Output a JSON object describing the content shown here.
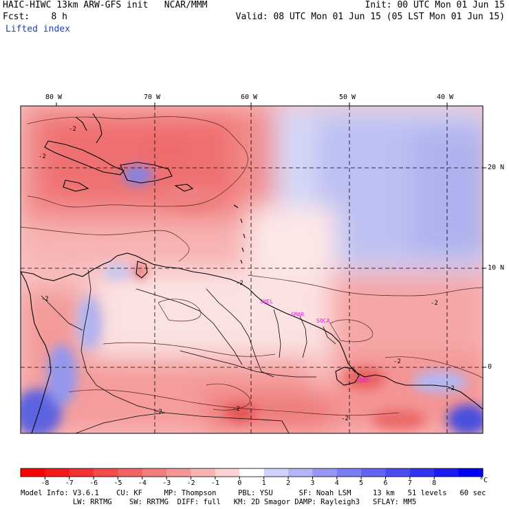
{
  "header": {
    "model_line": "HAIC-HIWC 13km ARW-GFS init   NCAR/MMM",
    "init_line": "Init: 00 UTC Mon 01 Jun 15",
    "fcst_line": "Fcst:    8 h",
    "valid_line": "Valid: 08 UTC Mon 01 Jun 15 (05 LST Mon 01 Jun 15)",
    "field_name": "Lifted index"
  },
  "map": {
    "longitude_labels": [
      "80 W",
      "70 W",
      "60 W",
      "50 W",
      "40 W"
    ],
    "latitude_labels": [
      "20 N",
      "10 N",
      "0"
    ],
    "station_labels": [
      "SHEL",
      "SMAR",
      "SOCA",
      "SBBE"
    ],
    "contour_labels": [
      "-2",
      "-2",
      "-2",
      "-2",
      "-2",
      "-2",
      "-2",
      "-2",
      "-2",
      "-2"
    ],
    "station_color": "#e020e0"
  },
  "colorbar": {
    "unit": "°C",
    "tick_labels": [
      "-8",
      "-7",
      "-6",
      "-5",
      "-4",
      "-3",
      "-2",
      "-1",
      "0",
      "1",
      "2",
      "3",
      "4",
      "5",
      "6",
      "7",
      "8"
    ],
    "colors": [
      "#ff0000",
      "#f21a1a",
      "#f23232",
      "#f24b4b",
      "#f26464",
      "#f27d7d",
      "#f69696",
      "#f9b4b4",
      "#fcd2d2",
      "#ffffff",
      "#d2d2fc",
      "#b4b4f9",
      "#9696f6",
      "#7d7df2",
      "#6464f2",
      "#4b4bf2",
      "#3232f2",
      "#1a1af2",
      "#0000ff"
    ]
  },
  "footer": {
    "line1": "Model Info: V3.6.1    CU: KF     MP: Thompson     PBL: YSU      SF: Noah LSM     13 km   51 levels   60 sec",
    "line2": "            LW: RRTMG    SW: RRTMG  DIFF: full   KM: 2D Smagor DAMP: Rayleigh3   SFLAY: MM5"
  }
}
